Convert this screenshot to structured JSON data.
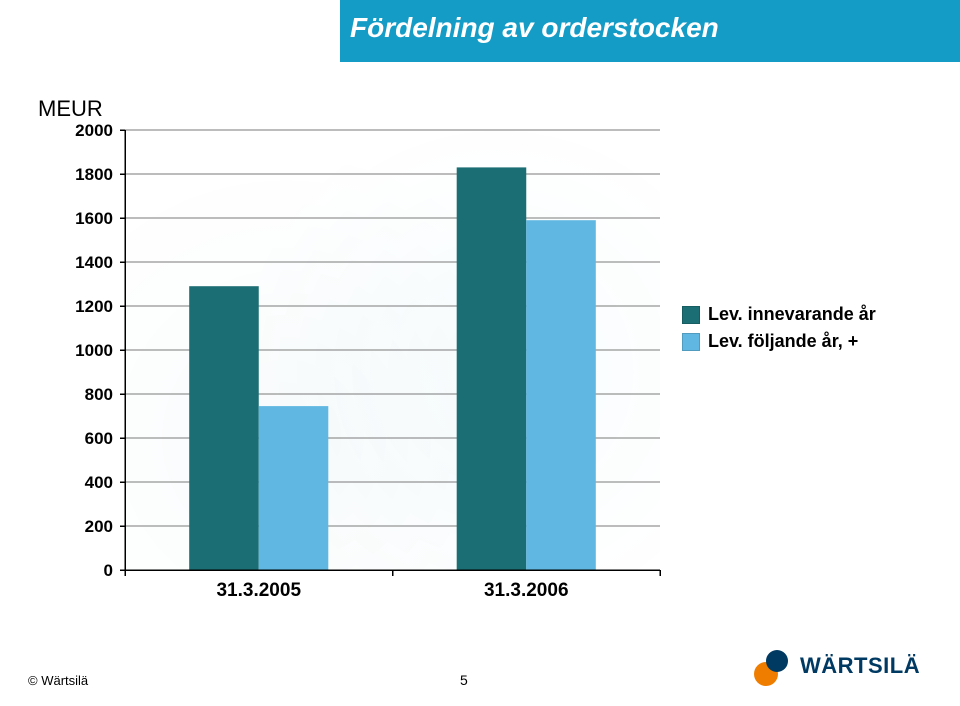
{
  "header": {
    "title": "Fördelning av orderstocken",
    "band_color": "#149cc7",
    "title_color": "#ffffff",
    "title_fontsize": 28
  },
  "chart": {
    "type": "bar",
    "y_title": "MEUR",
    "y_title_fontsize": 22,
    "ylim": [
      0,
      2000
    ],
    "ytick_step": 200,
    "yticks": [
      0,
      200,
      400,
      600,
      800,
      1000,
      1200,
      1400,
      1600,
      1800,
      2000
    ],
    "categories": [
      "31.3.2005",
      "31.3.2006"
    ],
    "series": [
      {
        "name": "Lev. innevarande år",
        "color": "#1b6e73",
        "values": [
          1290,
          1830
        ]
      },
      {
        "name": "Lev. följande år, +",
        "color": "#60b7e1",
        "values": [
          745,
          1590
        ]
      }
    ],
    "tick_fontsize": 17,
    "cat_fontsize": 19,
    "grid_color": "#7a7a7a",
    "axis_color": "#000000",
    "background_color": "#ffffff",
    "bar_group_width": 0.52,
    "bar_gap": 0
  },
  "legend": {
    "fontsize": 18,
    "items": [
      {
        "label": "Lev. innevarande år",
        "color": "#1b6e73"
      },
      {
        "label": "Lev. följande år, +",
        "color": "#60b7e1"
      }
    ]
  },
  "footer": {
    "copyright": "© Wärtsilä",
    "page_number": "5",
    "logo_text": "WÄRTSILÄ",
    "logo_color_primary": "#003a63",
    "logo_color_accent": "#ef7d00"
  }
}
